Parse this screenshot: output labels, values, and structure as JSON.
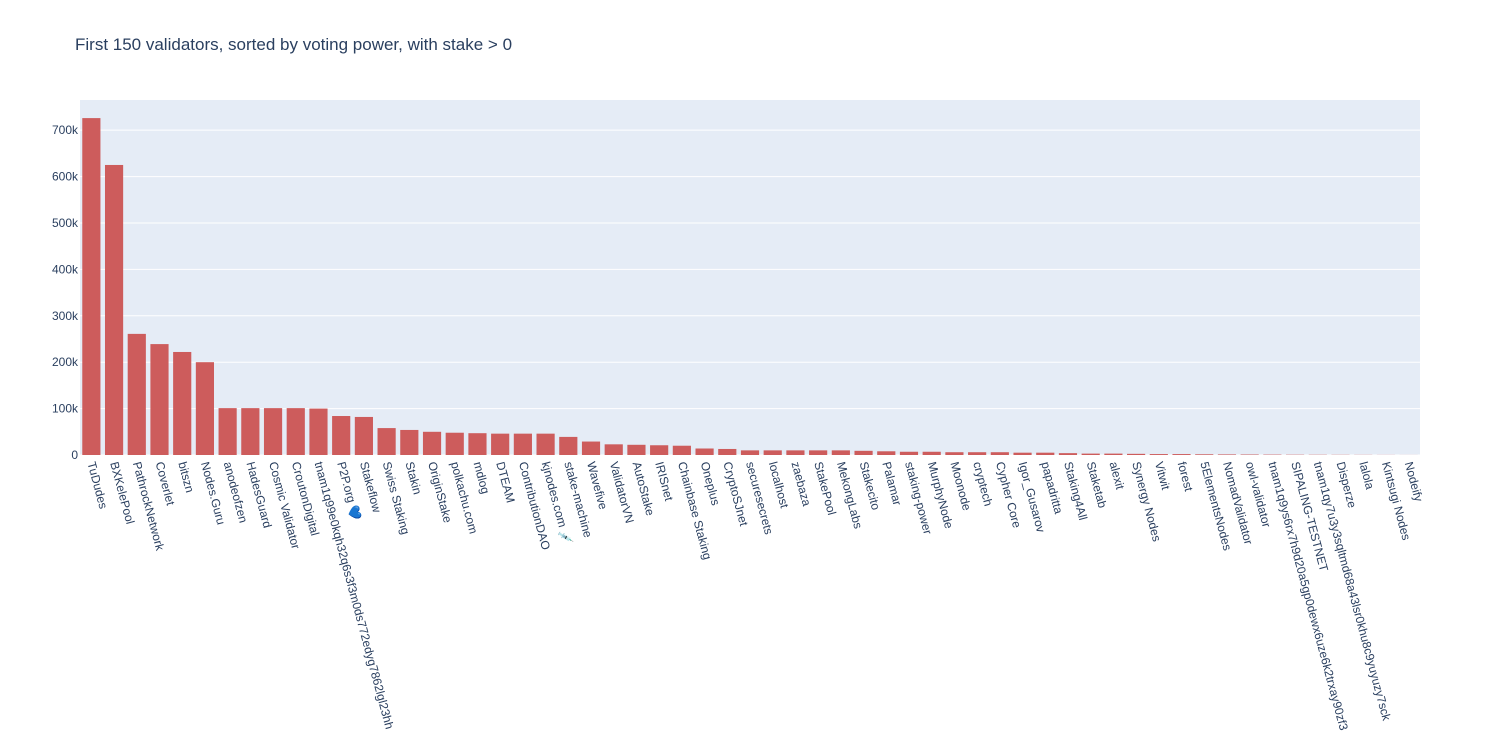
{
  "chart_data": {
    "type": "bar",
    "title": "First 150 validators, sorted by voting power, with stake > 0",
    "categories": [
      "TuDudes",
      "BXKelePool",
      "PathrockNetwork",
      "Coverlet",
      "bitszn",
      "Nodes.Guru",
      "anodeofzen",
      "HadesGuard",
      "Cosmic Validator",
      "CroutonDigital",
      "tnam1q99e0kqh32q6s3f3m0ds772edyg7862lgl23hh",
      "P2P.org 💙",
      "Stakeflow",
      "Swiss Staking",
      "Stakin",
      "OriginStake",
      "polkachu.com",
      "mdlog",
      "DTEAM",
      "ContributionDAO",
      "kjnodes.com 💉",
      "stake-machine",
      "Wavefive",
      "ValidatorVN",
      "AutoStake",
      "IRISnet",
      "Chainbase Staking",
      "Oneplus",
      "CryptoSJnet",
      "securesecrets",
      "localhost",
      "zaebaza",
      "StakePool",
      "MekongLabs",
      "Stakecito",
      "Palamar",
      "staking-power",
      "MurphyNode",
      "Moonode",
      "cryptech",
      "Cypher Core",
      "Igor_Gusarov",
      "papadritta",
      "Staking4All",
      "Staketab",
      "alexit",
      "Synergy Nodes",
      "Vitwit",
      "forest",
      "5ElementsNodes",
      "NomadValidator",
      "owl-validator",
      "tnam1q9ys6rx7h9d20a5gp0dewx6uze6k2trxay90zf3",
      "SIPALING-TESTNET",
      "tnam1qy7u3y3sqltmd68a43lsr0khu8c9yuyuzy7sck",
      "Disperze",
      "lalola",
      "Kintsugi Nodes",
      "Nodeify"
    ],
    "values": [
      726000,
      625000,
      261000,
      239000,
      222000,
      200000,
      101000,
      101000,
      101000,
      101000,
      100000,
      84000,
      82000,
      58000,
      54000,
      50000,
      48000,
      47000,
      46000,
      46000,
      46000,
      39000,
      29000,
      23000,
      22000,
      21000,
      20000,
      14000,
      13000,
      10000,
      10000,
      10000,
      10000,
      10000,
      9000,
      8000,
      7000,
      7000,
      6000,
      6000,
      6000,
      5000,
      5000,
      4000,
      3000,
      3000,
      2500,
      2000,
      2000,
      1500,
      1200,
      1000,
      800,
      600,
      500,
      400,
      300,
      200,
      100
    ],
    "color": "#cd5c5c",
    "ylim": [
      0,
      765000
    ],
    "yticks": [
      0,
      {
        "value": 100000,
        "label": "100k"
      },
      {
        "value": 200000,
        "label": "200k"
      },
      {
        "value": 300000,
        "label": "300k"
      },
      {
        "value": 400000,
        "label": "400k"
      },
      {
        "value": 500000,
        "label": "500k"
      },
      {
        "value": 600000,
        "label": "600k"
      },
      {
        "value": 700000,
        "label": "700k"
      }
    ],
    "grid": true
  }
}
